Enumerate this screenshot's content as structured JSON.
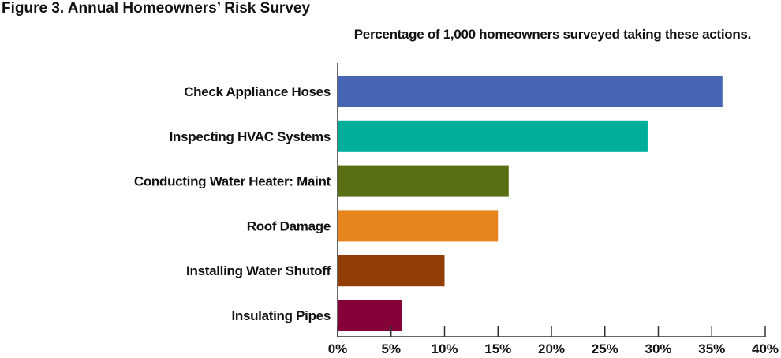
{
  "figure": {
    "title": "Figure 3. Annual Homeowners’ Risk Survey"
  },
  "chart_data": {
    "type": "bar",
    "orientation": "horizontal",
    "title": "Figure 3. Annual Homeowners’ Risk Survey",
    "subtitle": "Percentage of 1,000 homeowners surveyed taking these actions.",
    "xlabel": "",
    "ylabel": "",
    "categories": [
      "Check Appliance Hoses",
      "Inspecting HVAC Systems",
      "Conducting Water Heater: Maint",
      "Roof Damage",
      "Installing Water Shutoff",
      "Insulating Pipes"
    ],
    "values": [
      36,
      29,
      16,
      15,
      10,
      6
    ],
    "colors": [
      "#4666b4",
      "#00ae9a",
      "#596f13",
      "#e8841e",
      "#923c06",
      "#850038"
    ],
    "xlim": [
      0,
      40
    ],
    "x_ticks": [
      0,
      5,
      10,
      15,
      20,
      25,
      30,
      35,
      40
    ],
    "x_tick_labels": [
      "0%",
      "5%",
      "10%",
      "15%",
      "20%",
      "25%",
      "30%",
      "35%",
      "40%"
    ],
    "grid": false,
    "legend": "none"
  }
}
